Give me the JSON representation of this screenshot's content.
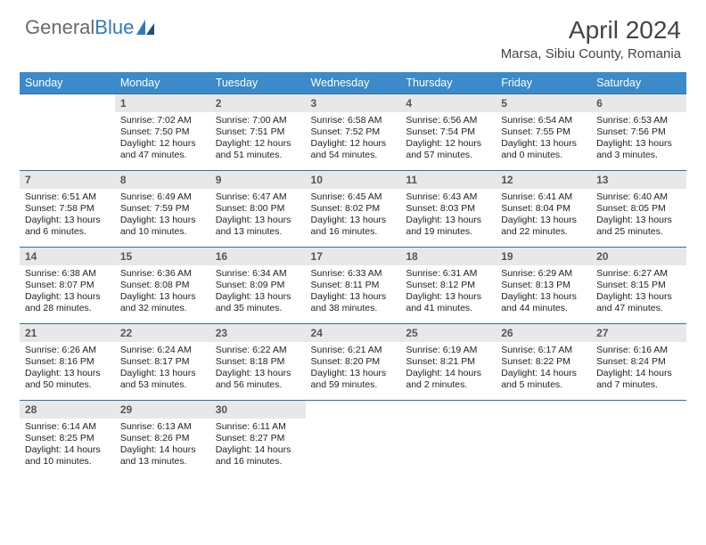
{
  "brand": {
    "part1": "General",
    "part2": "Blue"
  },
  "title": "April 2024",
  "location": "Marsa, Sibiu County, Romania",
  "colors": {
    "header_bg": "#3b8aca",
    "header_text": "#ffffff",
    "daynum_bg": "#e8e8e8",
    "rule": "#2f6fa8",
    "brand_gray": "#6a6a6a",
    "brand_blue": "#2f7ac0"
  },
  "weekdays": [
    "Sunday",
    "Monday",
    "Tuesday",
    "Wednesday",
    "Thursday",
    "Friday",
    "Saturday"
  ],
  "weeks": [
    [
      {
        "n": "",
        "sr": "",
        "ss": "",
        "d1": "",
        "d2": ""
      },
      {
        "n": "1",
        "sr": "Sunrise: 7:02 AM",
        "ss": "Sunset: 7:50 PM",
        "d1": "Daylight: 12 hours",
        "d2": "and 47 minutes."
      },
      {
        "n": "2",
        "sr": "Sunrise: 7:00 AM",
        "ss": "Sunset: 7:51 PM",
        "d1": "Daylight: 12 hours",
        "d2": "and 51 minutes."
      },
      {
        "n": "3",
        "sr": "Sunrise: 6:58 AM",
        "ss": "Sunset: 7:52 PM",
        "d1": "Daylight: 12 hours",
        "d2": "and 54 minutes."
      },
      {
        "n": "4",
        "sr": "Sunrise: 6:56 AM",
        "ss": "Sunset: 7:54 PM",
        "d1": "Daylight: 12 hours",
        "d2": "and 57 minutes."
      },
      {
        "n": "5",
        "sr": "Sunrise: 6:54 AM",
        "ss": "Sunset: 7:55 PM",
        "d1": "Daylight: 13 hours",
        "d2": "and 0 minutes."
      },
      {
        "n": "6",
        "sr": "Sunrise: 6:53 AM",
        "ss": "Sunset: 7:56 PM",
        "d1": "Daylight: 13 hours",
        "d2": "and 3 minutes."
      }
    ],
    [
      {
        "n": "7",
        "sr": "Sunrise: 6:51 AM",
        "ss": "Sunset: 7:58 PM",
        "d1": "Daylight: 13 hours",
        "d2": "and 6 minutes."
      },
      {
        "n": "8",
        "sr": "Sunrise: 6:49 AM",
        "ss": "Sunset: 7:59 PM",
        "d1": "Daylight: 13 hours",
        "d2": "and 10 minutes."
      },
      {
        "n": "9",
        "sr": "Sunrise: 6:47 AM",
        "ss": "Sunset: 8:00 PM",
        "d1": "Daylight: 13 hours",
        "d2": "and 13 minutes."
      },
      {
        "n": "10",
        "sr": "Sunrise: 6:45 AM",
        "ss": "Sunset: 8:02 PM",
        "d1": "Daylight: 13 hours",
        "d2": "and 16 minutes."
      },
      {
        "n": "11",
        "sr": "Sunrise: 6:43 AM",
        "ss": "Sunset: 8:03 PM",
        "d1": "Daylight: 13 hours",
        "d2": "and 19 minutes."
      },
      {
        "n": "12",
        "sr": "Sunrise: 6:41 AM",
        "ss": "Sunset: 8:04 PM",
        "d1": "Daylight: 13 hours",
        "d2": "and 22 minutes."
      },
      {
        "n": "13",
        "sr": "Sunrise: 6:40 AM",
        "ss": "Sunset: 8:05 PM",
        "d1": "Daylight: 13 hours",
        "d2": "and 25 minutes."
      }
    ],
    [
      {
        "n": "14",
        "sr": "Sunrise: 6:38 AM",
        "ss": "Sunset: 8:07 PM",
        "d1": "Daylight: 13 hours",
        "d2": "and 28 minutes."
      },
      {
        "n": "15",
        "sr": "Sunrise: 6:36 AM",
        "ss": "Sunset: 8:08 PM",
        "d1": "Daylight: 13 hours",
        "d2": "and 32 minutes."
      },
      {
        "n": "16",
        "sr": "Sunrise: 6:34 AM",
        "ss": "Sunset: 8:09 PM",
        "d1": "Daylight: 13 hours",
        "d2": "and 35 minutes."
      },
      {
        "n": "17",
        "sr": "Sunrise: 6:33 AM",
        "ss": "Sunset: 8:11 PM",
        "d1": "Daylight: 13 hours",
        "d2": "and 38 minutes."
      },
      {
        "n": "18",
        "sr": "Sunrise: 6:31 AM",
        "ss": "Sunset: 8:12 PM",
        "d1": "Daylight: 13 hours",
        "d2": "and 41 minutes."
      },
      {
        "n": "19",
        "sr": "Sunrise: 6:29 AM",
        "ss": "Sunset: 8:13 PM",
        "d1": "Daylight: 13 hours",
        "d2": "and 44 minutes."
      },
      {
        "n": "20",
        "sr": "Sunrise: 6:27 AM",
        "ss": "Sunset: 8:15 PM",
        "d1": "Daylight: 13 hours",
        "d2": "and 47 minutes."
      }
    ],
    [
      {
        "n": "21",
        "sr": "Sunrise: 6:26 AM",
        "ss": "Sunset: 8:16 PM",
        "d1": "Daylight: 13 hours",
        "d2": "and 50 minutes."
      },
      {
        "n": "22",
        "sr": "Sunrise: 6:24 AM",
        "ss": "Sunset: 8:17 PM",
        "d1": "Daylight: 13 hours",
        "d2": "and 53 minutes."
      },
      {
        "n": "23",
        "sr": "Sunrise: 6:22 AM",
        "ss": "Sunset: 8:18 PM",
        "d1": "Daylight: 13 hours",
        "d2": "and 56 minutes."
      },
      {
        "n": "24",
        "sr": "Sunrise: 6:21 AM",
        "ss": "Sunset: 8:20 PM",
        "d1": "Daylight: 13 hours",
        "d2": "and 59 minutes."
      },
      {
        "n": "25",
        "sr": "Sunrise: 6:19 AM",
        "ss": "Sunset: 8:21 PM",
        "d1": "Daylight: 14 hours",
        "d2": "and 2 minutes."
      },
      {
        "n": "26",
        "sr": "Sunrise: 6:17 AM",
        "ss": "Sunset: 8:22 PM",
        "d1": "Daylight: 14 hours",
        "d2": "and 5 minutes."
      },
      {
        "n": "27",
        "sr": "Sunrise: 6:16 AM",
        "ss": "Sunset: 8:24 PM",
        "d1": "Daylight: 14 hours",
        "d2": "and 7 minutes."
      }
    ],
    [
      {
        "n": "28",
        "sr": "Sunrise: 6:14 AM",
        "ss": "Sunset: 8:25 PM",
        "d1": "Daylight: 14 hours",
        "d2": "and 10 minutes."
      },
      {
        "n": "29",
        "sr": "Sunrise: 6:13 AM",
        "ss": "Sunset: 8:26 PM",
        "d1": "Daylight: 14 hours",
        "d2": "and 13 minutes."
      },
      {
        "n": "30",
        "sr": "Sunrise: 6:11 AM",
        "ss": "Sunset: 8:27 PM",
        "d1": "Daylight: 14 hours",
        "d2": "and 16 minutes."
      },
      {
        "n": "",
        "sr": "",
        "ss": "",
        "d1": "",
        "d2": ""
      },
      {
        "n": "",
        "sr": "",
        "ss": "",
        "d1": "",
        "d2": ""
      },
      {
        "n": "",
        "sr": "",
        "ss": "",
        "d1": "",
        "d2": ""
      },
      {
        "n": "",
        "sr": "",
        "ss": "",
        "d1": "",
        "d2": ""
      }
    ]
  ]
}
